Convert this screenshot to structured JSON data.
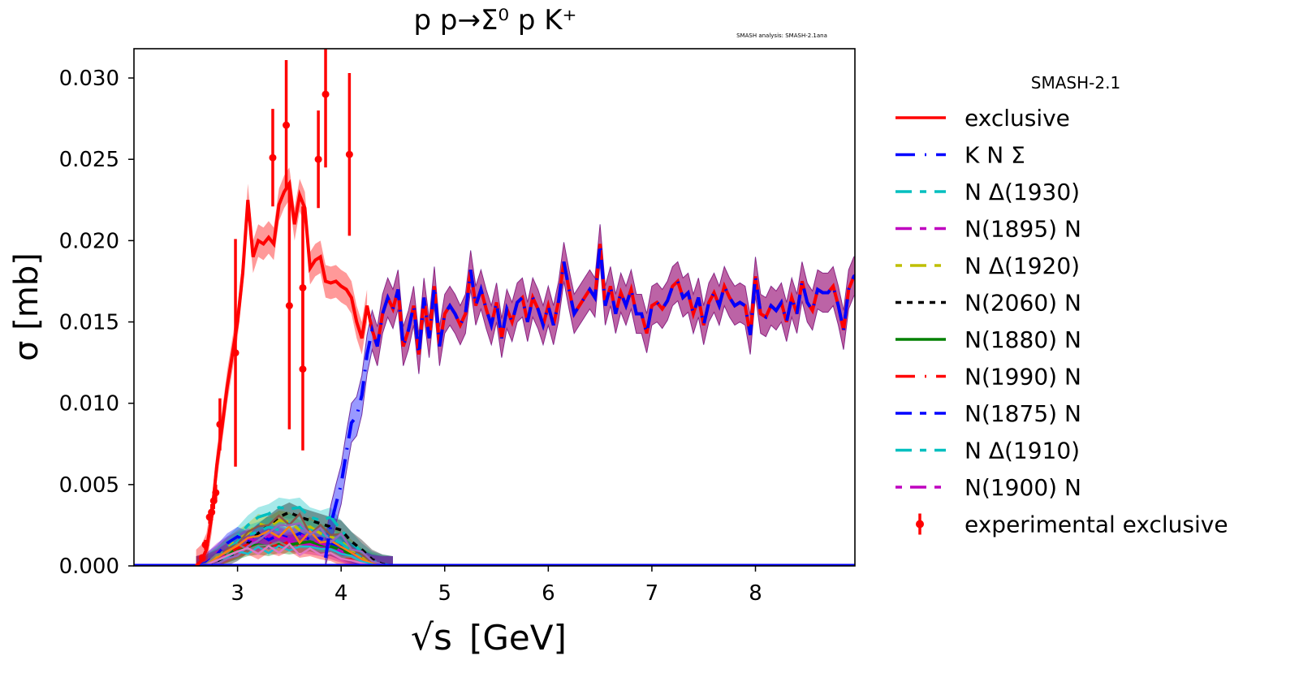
{
  "chart_data": {
    "type": "line",
    "title": "p p→Σ⁰ p K⁺",
    "watermark": "SMASH analysis: SMASH-2.1ana",
    "xlabel_root": "√s",
    "xlabel_unit": "[GeV]",
    "ylabel": "σ [mb]",
    "xlim": [
      2.0,
      8.96
    ],
    "ylim": [
      0.0,
      0.0318
    ],
    "xticks": [
      3,
      4,
      5,
      6,
      7,
      8
    ],
    "xtick_labels": [
      "3",
      "4",
      "5",
      "6",
      "7",
      "8"
    ],
    "yticks": [
      0.0,
      0.005,
      0.01,
      0.015,
      0.02,
      0.025,
      0.03
    ],
    "ytick_labels": [
      "0.000",
      "0.005",
      "0.010",
      "0.015",
      "0.020",
      "0.025",
      "0.030"
    ],
    "legend": {
      "title": "SMASH-2.1",
      "placement": "outside-right",
      "entries": [
        {
          "label": "exclusive",
          "color": "#ff0000",
          "dash": ""
        },
        {
          "label": "K N Σ",
          "color": "#0000ff",
          "dash": "24 12 2 12"
        },
        {
          "label": "N Δ(1930)",
          "color": "#00bfbf",
          "dash": "20 10 8 10"
        },
        {
          "label": "N(1895) N",
          "color": "#bf00bf",
          "dash": "20 10 8 10"
        },
        {
          "label": "N Δ(1920)",
          "color": "#bfbf00",
          "dash": "8 10 20 10"
        },
        {
          "label": "N(2060) N",
          "color": "#000000",
          "dash": "7 7"
        },
        {
          "label": "N(1880) N",
          "color": "#008000",
          "dash": ""
        },
        {
          "label": "N(1990) N",
          "color": "#ff0000",
          "dash": "24 12 2 12"
        },
        {
          "label": "N(1875) N",
          "color": "#0000ff",
          "dash": "20 10 8 10"
        },
        {
          "label": "N Δ(1910)",
          "color": "#00bfbf",
          "dash": "20 10 8 10"
        },
        {
          "label": "N(1900) N",
          "color": "#bf00bf",
          "dash": "8 10 20 10"
        },
        {
          "label": "experimental exclusive",
          "color": "#ff0000",
          "dash": "errorbar"
        }
      ]
    },
    "exclusive": {
      "x": [
        2.6,
        2.65,
        2.7,
        2.75,
        2.8,
        2.85,
        2.9,
        2.95,
        3.0,
        3.05,
        3.1,
        3.15,
        3.2,
        3.25,
        3.3,
        3.35,
        3.4,
        3.45,
        3.5,
        3.55,
        3.6,
        3.65,
        3.7,
        3.75,
        3.8,
        3.85,
        3.9,
        3.95,
        4.0,
        4.05,
        4.1,
        4.15,
        4.2,
        4.25
      ],
      "y": [
        0.0,
        0.0003,
        0.001,
        0.003,
        0.0062,
        0.0085,
        0.011,
        0.013,
        0.015,
        0.018,
        0.0225,
        0.019,
        0.02,
        0.0198,
        0.0202,
        0.0198,
        0.0222,
        0.023,
        0.0235,
        0.021,
        0.0228,
        0.022,
        0.0183,
        0.0188,
        0.019,
        0.0175,
        0.0174,
        0.0175,
        0.0172,
        0.017,
        0.0165,
        0.015,
        0.014,
        0.016
      ],
      "band": 0.001,
      "note": "above 4.3 GeV equals K N Σ"
    },
    "kns": {
      "x_start": 3.85,
      "x_step": 0.05,
      "y": [
        0.0005,
        0.0025,
        0.0038,
        0.005,
        0.007,
        0.0088,
        0.0092,
        0.0105,
        0.013,
        0.0145,
        0.0135,
        0.0155,
        0.0165,
        0.0158,
        0.017,
        0.0135,
        0.0145,
        0.016,
        0.013,
        0.0165,
        0.014,
        0.0172,
        0.0135,
        0.0155,
        0.016,
        0.0155,
        0.0148,
        0.0155,
        0.0182,
        0.016,
        0.017,
        0.0158,
        0.0148,
        0.0162,
        0.014,
        0.0158,
        0.015,
        0.0162,
        0.0165,
        0.015,
        0.0165,
        0.0158,
        0.0148,
        0.016,
        0.0148,
        0.0163,
        0.0187,
        0.017,
        0.0155,
        0.016,
        0.0165,
        0.017,
        0.0165,
        0.0198,
        0.016,
        0.0172,
        0.0155,
        0.0168,
        0.016,
        0.017,
        0.0155,
        0.0155,
        0.0143,
        0.016,
        0.0162,
        0.0158,
        0.0163,
        0.0172,
        0.0175,
        0.0165,
        0.0168,
        0.0155,
        0.0165,
        0.0148,
        0.0162,
        0.0168,
        0.016,
        0.0172,
        0.0165,
        0.016,
        0.0162,
        0.016,
        0.0142,
        0.0178,
        0.0155,
        0.0153,
        0.016,
        0.0157,
        0.0162,
        0.015,
        0.0165,
        0.0155,
        0.0175,
        0.0162,
        0.0157,
        0.017,
        0.0168,
        0.0168,
        0.0172,
        0.016,
        0.0145,
        0.017,
        0.0178,
        0.018
      ],
      "band": 0.0012
    },
    "resonances": {
      "x": [
        2.6,
        2.7,
        2.8,
        2.9,
        3.0,
        3.1,
        3.2,
        3.3,
        3.4,
        3.5,
        3.6,
        3.7,
        3.8,
        3.9,
        4.0,
        4.1,
        4.2,
        4.3,
        4.4,
        4.5
      ],
      "series": [
        {
          "name": "N Δ(1930)",
          "y": [
            0,
            0.0001,
            0.0005,
            0.0012,
            0.0018,
            0.0025,
            0.003,
            0.0032,
            0.0036,
            0.0035,
            0.0036,
            0.003,
            0.0028,
            0.003,
            0.0022,
            0.0015,
            0.0008,
            0.0003,
            0.0001,
            0
          ]
        },
        {
          "name": "N(1895) N",
          "y": [
            0,
            0.0002,
            0.0008,
            0.0012,
            0.0015,
            0.0016,
            0.0014,
            0.0018,
            0.0017,
            0.0015,
            0.0014,
            0.0013,
            0.0012,
            0.001,
            0.0008,
            0.0006,
            0.0003,
            0.0001,
            0,
            0
          ]
        },
        {
          "name": "N Δ(1920)",
          "y": [
            0,
            0.0001,
            0.0006,
            0.0011,
            0.0016,
            0.002,
            0.0026,
            0.0024,
            0.0028,
            0.0027,
            0.0022,
            0.0024,
            0.002,
            0.0018,
            0.0015,
            0.001,
            0.0005,
            0.0002,
            0,
            0
          ]
        },
        {
          "name": "N(2060) N",
          "y": [
            0,
            0,
            0.0002,
            0.0005,
            0.0009,
            0.0014,
            0.002,
            0.0025,
            0.003,
            0.0033,
            0.003,
            0.0028,
            0.0026,
            0.0024,
            0.0022,
            0.0015,
            0.001,
            0.0004,
            0.0001,
            0
          ]
        },
        {
          "name": "N(1880) N",
          "y": [
            0,
            0.0001,
            0.0004,
            0.0008,
            0.001,
            0.0012,
            0.0013,
            0.0012,
            0.0014,
            0.0013,
            0.0014,
            0.0015,
            0.0013,
            0.0012,
            0.001,
            0.0007,
            0.0004,
            0.0001,
            0,
            0
          ]
        },
        {
          "name": "N(1990) N",
          "y": [
            0,
            0.0001,
            0.0004,
            0.0008,
            0.0011,
            0.0013,
            0.001,
            0.0014,
            0.0012,
            0.0015,
            0.0011,
            0.0012,
            0.001,
            0.0009,
            0.0006,
            0.0004,
            0.0002,
            0,
            0,
            0
          ]
        },
        {
          "name": "N(1875) N",
          "y": [
            0,
            0.0002,
            0.0007,
            0.0014,
            0.0018,
            0.0015,
            0.002,
            0.0016,
            0.0019,
            0.0017,
            0.002,
            0.0016,
            0.0017,
            0.0014,
            0.0012,
            0.0008,
            0.0004,
            0.0001,
            0,
            0
          ]
        },
        {
          "name": "N Δ(1910)",
          "y": [
            0,
            0.0001,
            0.0005,
            0.001,
            0.0015,
            0.0019,
            0.0021,
            0.0024,
            0.0022,
            0.0026,
            0.0024,
            0.0022,
            0.002,
            0.0017,
            0.0014,
            0.0009,
            0.0005,
            0.0002,
            0,
            0
          ]
        },
        {
          "name": "N(1900) N",
          "y": [
            0,
            0.0001,
            0.0004,
            0.0009,
            0.0013,
            0.0017,
            0.0015,
            0.0019,
            0.0018,
            0.0016,
            0.0019,
            0.0017,
            0.0014,
            0.0012,
            0.0009,
            0.0006,
            0.0003,
            0.0001,
            0,
            0
          ]
        }
      ]
    },
    "experimental": {
      "x": [
        2.66,
        2.69,
        2.73,
        2.75,
        2.77,
        2.79,
        2.83,
        2.98,
        3.34,
        3.47,
        3.5,
        3.63,
        3.63,
        3.78,
        3.85,
        4.08
      ],
      "y": [
        0.0005,
        0.0013,
        0.003,
        0.0033,
        0.004,
        0.0045,
        0.0087,
        0.0131,
        0.0251,
        0.0271,
        0.016,
        0.0171,
        0.0121,
        0.025,
        0.029,
        0.0253
      ],
      "err": [
        0.0002,
        0.0003,
        0.0004,
        0.0005,
        0.0005,
        0.0005,
        0.0016,
        0.007,
        0.003,
        0.004,
        0.0076,
        0.005,
        0.005,
        0.003,
        0.0045,
        0.005
      ]
    }
  }
}
